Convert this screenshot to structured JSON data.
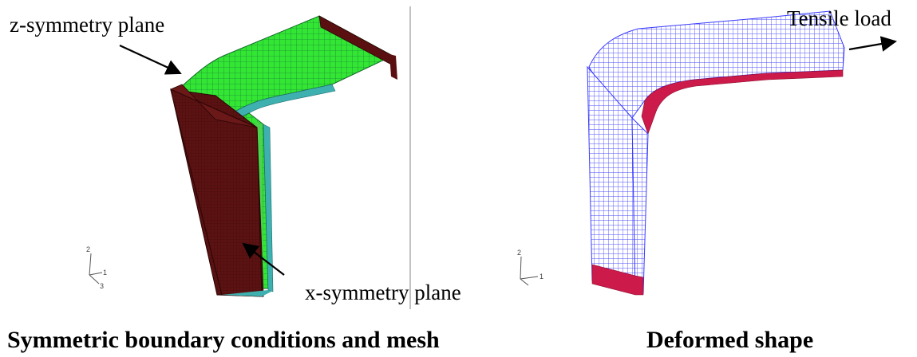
{
  "left_panel": {
    "annotation_top": "z-symmetry plane",
    "annotation_bottom": "x-symmetry plane",
    "caption": "Symmetric boundary conditions and mesh",
    "axis_triad": [
      "2",
      "1",
      "3"
    ]
  },
  "right_panel": {
    "annotation_load": "Tensile load",
    "caption": "Deformed shape",
    "axis_triad": [
      "2",
      "1"
    ]
  },
  "colors": {
    "symmetry_face": "#5a1010",
    "mesh_green": "#2ee02e",
    "mesh_cyan": "#3fb0b0",
    "deformed_mesh": "#5050ff",
    "deformed_edge": "#cc1a4a",
    "divider": "#9a9a9a"
  }
}
